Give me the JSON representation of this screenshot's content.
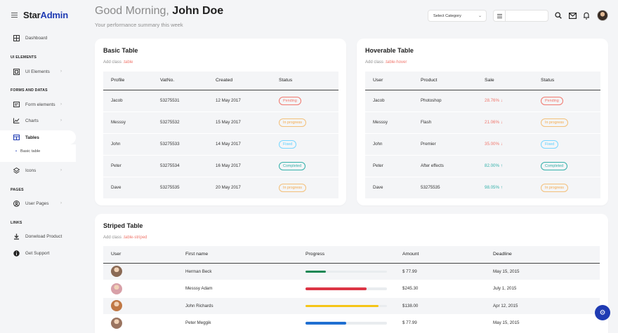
{
  "brand": {
    "name_part1": "Star",
    "name_part2": "Admin"
  },
  "sidebar": {
    "dashboard": "Dashboard",
    "sections": {
      "ui": "UI ELEMENTS",
      "forms": "FORMS AND DATAS",
      "pages": "PAGES",
      "links": "LINKS"
    },
    "ui_elements": "UI Elements",
    "form_elements": "Form elements",
    "charts": "Charts",
    "tables": "Tables",
    "basic_table": "Basic table",
    "icons": "Icons",
    "user_pages": "User Pages",
    "download": "Donwload Product",
    "support": "Get Support"
  },
  "header": {
    "greeting": "Good Morning,",
    "user_name": "John Doe",
    "subtitle": "Your performance summary this week",
    "select_category": "Select Category",
    "search_placeholder": ""
  },
  "basic_table": {
    "title": "Basic Table",
    "desc_prefix": "Add class",
    "desc_class": ".table",
    "headers": [
      "Profile",
      "VatNo.",
      "Created",
      "Status"
    ],
    "rows": [
      {
        "profile": "Jacob",
        "vat": "53275531",
        "created": "12 May 2017",
        "status": "Pending",
        "cls": "b-pending"
      },
      {
        "profile": "Messsy",
        "vat": "53275532",
        "created": "15 May 2017",
        "status": "In progress",
        "cls": "b-inprogress"
      },
      {
        "profile": "John",
        "vat": "53275533",
        "created": "14 May 2017",
        "status": "Fixed",
        "cls": "b-fixed"
      },
      {
        "profile": "Peter",
        "vat": "53275534",
        "created": "16 May 2017",
        "status": "Completed",
        "cls": "b-completed"
      },
      {
        "profile": "Dave",
        "vat": "53275535",
        "created": "20 May 2017",
        "status": "In progress",
        "cls": "b-inprogress"
      }
    ]
  },
  "hoverable_table": {
    "title": "Hoverable Table",
    "desc_prefix": "Add class",
    "desc_class": ".table-hover",
    "headers": [
      "User",
      "Product",
      "Sale",
      "Status"
    ],
    "rows": [
      {
        "user": "Jacob",
        "product": "Photoshop",
        "sale": "28.76%",
        "dir": "down",
        "status": "Pending",
        "cls": "b-pending"
      },
      {
        "user": "Messsy",
        "product": "Flash",
        "sale": "21.06%",
        "dir": "down",
        "status": "In progress",
        "cls": "b-inprogress"
      },
      {
        "user": "John",
        "product": "Premier",
        "sale": "35.00%",
        "dir": "down",
        "status": "Fixed",
        "cls": "b-fixed"
      },
      {
        "user": "Peter",
        "product": "After effects",
        "sale": "82.00%",
        "dir": "up",
        "status": "Completed",
        "cls": "b-completed"
      },
      {
        "user": "Dave",
        "product": "53275535",
        "sale": "98.05%",
        "dir": "up",
        "status": "In progress",
        "cls": "b-inprogress"
      }
    ]
  },
  "striped_table": {
    "title": "Striped Table",
    "desc_prefix": "Add class",
    "desc_class": ".table-striped",
    "headers": [
      "User",
      "First name",
      "Progress",
      "Amount",
      "Deadline"
    ],
    "rows": [
      {
        "first_name": "Herman Beck",
        "progress": 0.25,
        "color": "#198754",
        "amount": "$ 77.99",
        "deadline": "May 15, 2015",
        "avatar": "#8a6a55"
      },
      {
        "first_name": "Messsy Adam",
        "progress": 0.75,
        "color": "#dc3545",
        "amount": "$245.30",
        "deadline": "July 1, 2015",
        "avatar": "#d8a0a8"
      },
      {
        "first_name": "John Richards",
        "progress": 0.9,
        "color": "#f5c518",
        "amount": "$138.00",
        "deadline": "Apr 12, 2015",
        "avatar": "#c07845"
      },
      {
        "first_name": "Peter Meggik",
        "progress": 0.5,
        "color": "#1f6fd1",
        "amount": "$ 77.99",
        "deadline": "May 15, 2015",
        "avatar": "#9a7460"
      }
    ]
  },
  "colors": {
    "accent": "#1f3bb3",
    "danger": "#f0776d",
    "success": "#34b1aa",
    "warning": "#f3a94b",
    "info": "#52cdff"
  }
}
